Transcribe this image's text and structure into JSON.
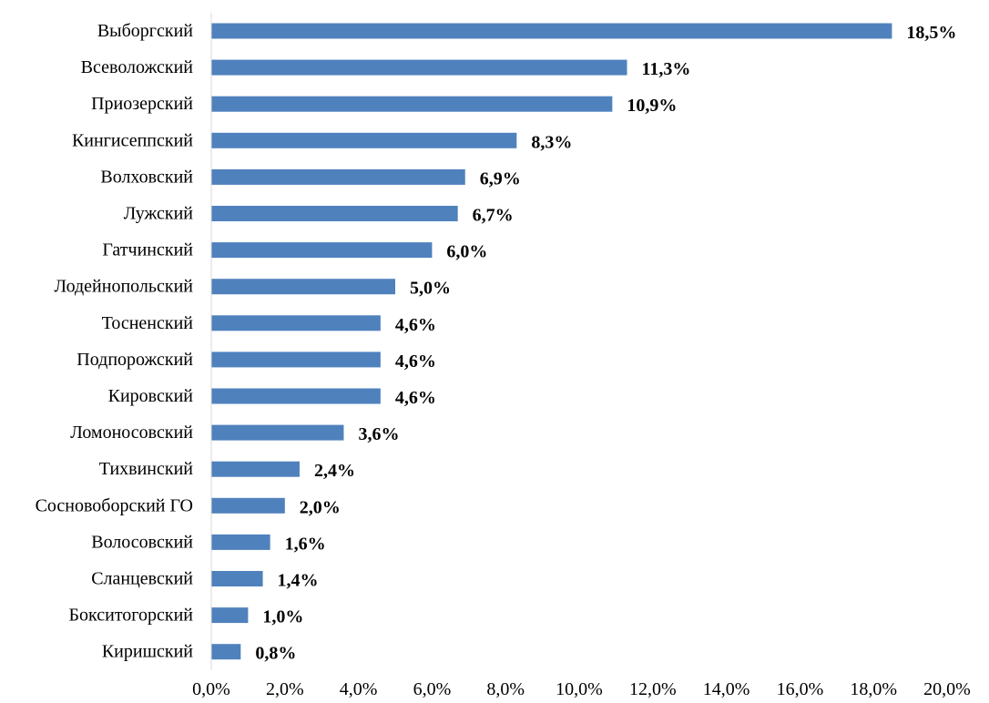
{
  "chart_data": {
    "type": "bar",
    "orientation": "horizontal",
    "categories": [
      "Выборгский",
      "Всеволожский",
      "Приозерский",
      "Кингисеппский",
      "Волховский",
      "Лужский",
      "Гатчинский",
      "Лодейнопольский",
      "Тосненский",
      "Подпорожский",
      "Кировский",
      "Ломоносовский",
      "Тихвинский",
      "Сосновоборский ГО",
      "Волосовский",
      "Сланцевский",
      "Бокситогорский",
      "Киришский"
    ],
    "values": [
      18.5,
      11.3,
      10.9,
      8.3,
      6.9,
      6.7,
      6.0,
      5.0,
      4.6,
      4.6,
      4.6,
      3.6,
      2.4,
      2.0,
      1.6,
      1.4,
      1.0,
      0.8
    ],
    "value_labels": [
      "18,5%",
      "11,3%",
      "10,9%",
      "8,3%",
      "6,9%",
      "6,7%",
      "6,0%",
      "5,0%",
      "4,6%",
      "4,6%",
      "4,6%",
      "3,6%",
      "2,4%",
      "2,0%",
      "1,6%",
      "1,4%",
      "1,0%",
      "0,8%"
    ],
    "x_ticks": [
      "0,0%",
      "2,0%",
      "4,0%",
      "6,0%",
      "8,0%",
      "10,0%",
      "12,0%",
      "14,0%",
      "16,0%",
      "18,0%",
      "20,0%"
    ],
    "xlim": [
      0,
      20
    ],
    "title": "",
    "xlabel": "",
    "ylabel": "",
    "grid": false,
    "legend": "none",
    "bar_color": "#4f81bd"
  }
}
